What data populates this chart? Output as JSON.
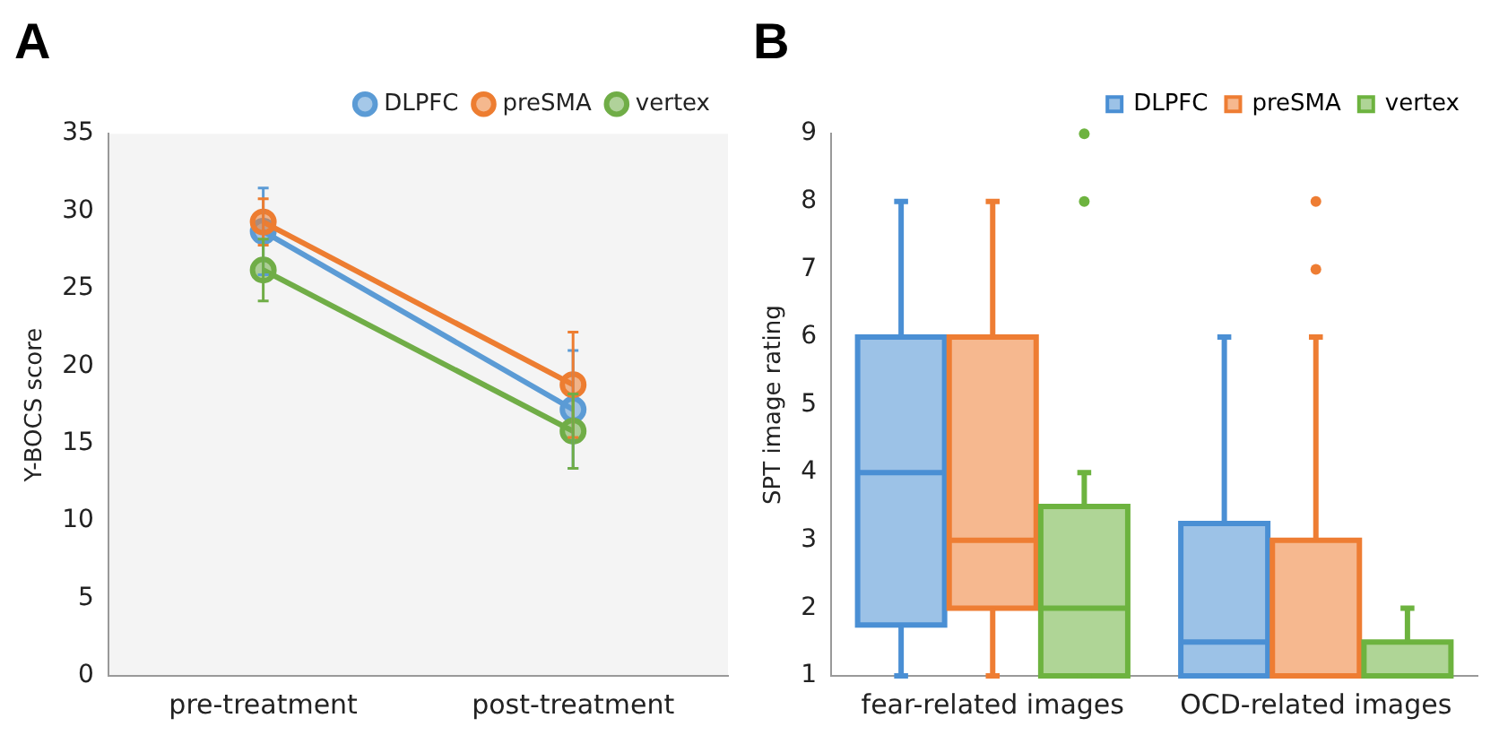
{
  "chart_data": [
    {
      "type": "line",
      "title": "A",
      "ylabel": "Y-BOCS score",
      "categories": [
        "pre-treatment",
        "post-treatment"
      ],
      "ylim": [
        0,
        35
      ],
      "yticks": [
        0,
        5,
        10,
        15,
        20,
        25,
        30,
        35
      ],
      "grid": false,
      "legend": "top right",
      "marker": "circle",
      "series": [
        {
          "name": "DLPFC",
          "color": "#5b9bd5",
          "values": [
            28.7,
            17.2
          ],
          "errors": [
            2.8,
            3.8
          ]
        },
        {
          "name": "preSMA",
          "color": "#ed7d31",
          "values": [
            29.3,
            18.8
          ],
          "errors": [
            1.5,
            3.4
          ]
        },
        {
          "name": "vertex",
          "color": "#70ad47",
          "values": [
            26.2,
            15.8
          ],
          "errors": [
            2.0,
            2.4
          ]
        }
      ]
    },
    {
      "type": "box",
      "title": "B",
      "ylabel": "SPT image rating",
      "categories": [
        "fear-related images",
        "OCD-related images"
      ],
      "ylim": [
        1,
        9
      ],
      "yticks": [
        1,
        2,
        3,
        4,
        5,
        6,
        7,
        8,
        9
      ],
      "grid": false,
      "legend": "top right",
      "series": [
        {
          "name": "DLPFC",
          "color": "#4a8fd4",
          "boxes": [
            {
              "low": 1,
              "q1": 1.75,
              "median": 4,
              "q3": 6,
              "high": 8
            },
            {
              "low": 1,
              "q1": 1,
              "median": 1.5,
              "q3": 3.25,
              "high": 6
            }
          ]
        },
        {
          "name": "preSMA",
          "color": "#ee7d33",
          "boxes": [
            {
              "low": 1,
              "q1": 2,
              "median": 3,
              "q3": 6,
              "high": 8
            },
            {
              "low": 1,
              "q1": 1,
              "median": 1,
              "q3": 3,
              "high": 6,
              "outliers": [
                7,
                8
              ]
            }
          ]
        },
        {
          "name": "vertex",
          "color": "#6db33f",
          "boxes": [
            {
              "low": 1,
              "q1": 1,
              "median": 2,
              "q3": 3.5,
              "high": 4,
              "outliers": [
                8,
                9
              ]
            },
            {
              "low": 1,
              "q1": 1,
              "median": 1,
              "q3": 1.5,
              "high": 2
            }
          ]
        }
      ]
    }
  ]
}
